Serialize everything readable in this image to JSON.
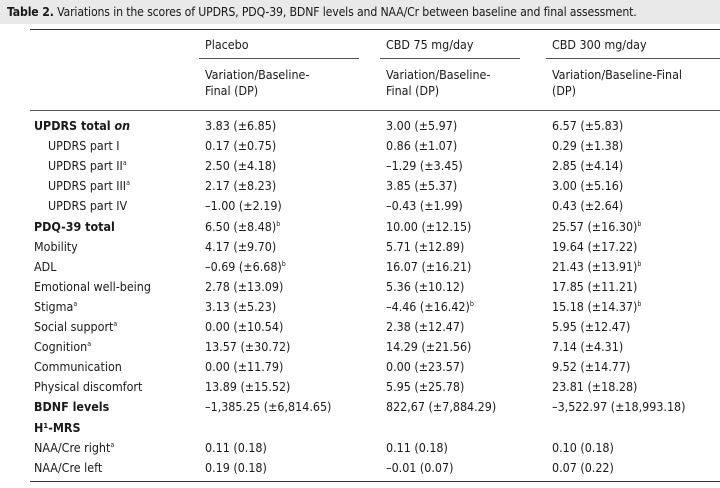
{
  "caption": {
    "label": "Table 2.",
    "text": "Variations in the scores of UPDRS, PDQ-39, BDNF levels and NAA/Cr between baseline and final assessment."
  },
  "columns": [
    {
      "group": "Placebo",
      "sub_line1": "Variation/Baseline-",
      "sub_line2": "Final (DP)"
    },
    {
      "group": "CBD 75 mg/day",
      "sub_line1": "Variation/Baseline-",
      "sub_line2": "Final (DP)"
    },
    {
      "group": "CBD 300 mg/day",
      "sub_line1": "Variation/Baseline-Final",
      "sub_line2": "(DP)"
    }
  ],
  "rows": [
    {
      "label": "UPDRS total on",
      "style": "bold",
      "values": [
        "3.83 (±6.85)",
        "3.00 (±5.97)",
        "6.57 (±5.83)"
      ]
    },
    {
      "label": "UPDRS part I",
      "style": "indent",
      "values": [
        "0.17 (±0.75)",
        "0.86 (±1.07)",
        "0.29 (±1.38)"
      ]
    },
    {
      "label": "UPDRS part II",
      "sup": "a",
      "style": "indent",
      "values": [
        "2.50 (±4.18)",
        "–1.29 (±3.45)",
        "2.85 (±4.14)"
      ]
    },
    {
      "label": "UPDRS part III",
      "sup": "a",
      "style": "indent",
      "values": [
        "2.17 (±8.23)",
        "3.85 (±5.37)",
        "3.00 (±5.16)"
      ]
    },
    {
      "label": "UPDRS part IV",
      "style": "indent",
      "values": [
        "–1.00 (±2.19)",
        "–0.43 (±1.99)",
        "0.43 (±2.64)"
      ]
    },
    {
      "label": "PDQ-39 total",
      "style": "bold",
      "values": [
        "6.50 (±8.48)",
        "10.00 (±12.15)",
        "25.57 (±16.30)"
      ],
      "value_sups": [
        "b",
        "",
        "b"
      ]
    },
    {
      "label": "Mobility",
      "style": "",
      "values": [
        "4.17 (±9.70)",
        "5.71 (±12.89)",
        "19.64 (±17.22)"
      ]
    },
    {
      "label": "ADL",
      "style": "",
      "values": [
        "–0.69 (±6.68)",
        "16.07 (±16.21)",
        "21.43 (±13.91)"
      ],
      "value_sups": [
        "b",
        "",
        "b"
      ]
    },
    {
      "label": "Emotional well-being",
      "style": "",
      "values": [
        "2.78 (±13.09)",
        "5.36 (±10.12)",
        "17.85 (±11.21)"
      ]
    },
    {
      "label": "Stigma",
      "sup": "a",
      "style": "",
      "values": [
        "3.13 (±5.23)",
        "–4.46 (±16.42)",
        "15.18 (±14.37)"
      ],
      "value_sups": [
        "",
        "b",
        "b"
      ]
    },
    {
      "label": "Social support",
      "sup": "a",
      "style": "",
      "values": [
        "0.00 (±10.54)",
        "2.38 (±12.47)",
        "5.95 (±12.47)"
      ]
    },
    {
      "label": "Cognition",
      "sup": "a",
      "style": "",
      "values": [
        "13.57 (±30.72)",
        "14.29 (±21.56)",
        "7.14 (±4.31)"
      ]
    },
    {
      "label": "Communication",
      "style": "",
      "values": [
        "0.00 (±11.79)",
        "0.00 (±23.57)",
        "9.52 (±14.77)"
      ]
    },
    {
      "label": "Physical discomfort",
      "style": "",
      "values": [
        "13.89 (±15.52)",
        "5.95 (±25.78)",
        "23.81 (±18.28)"
      ]
    },
    {
      "label": "BDNF levels",
      "style": "bold",
      "values": [
        "–1,385.25 (±6,814.65)",
        "822,67 (±7,884.29)",
        "–3,522.97 (±18,993.18)"
      ]
    },
    {
      "label": "H¹-MRS",
      "style": "bold",
      "values": [
        "",
        "",
        ""
      ]
    },
    {
      "label": "NAA/Cre right",
      "sup": "a",
      "style": "",
      "values": [
        "0.11 (0.18)",
        "0.11 (0.18)",
        "0.10 (0.18)"
      ]
    },
    {
      "label": "NAA/Cre left",
      "style": "",
      "values": [
        "0.19 (0.18)",
        "–0.01 (0.07)",
        "0.07 (0.22)"
      ]
    }
  ]
}
